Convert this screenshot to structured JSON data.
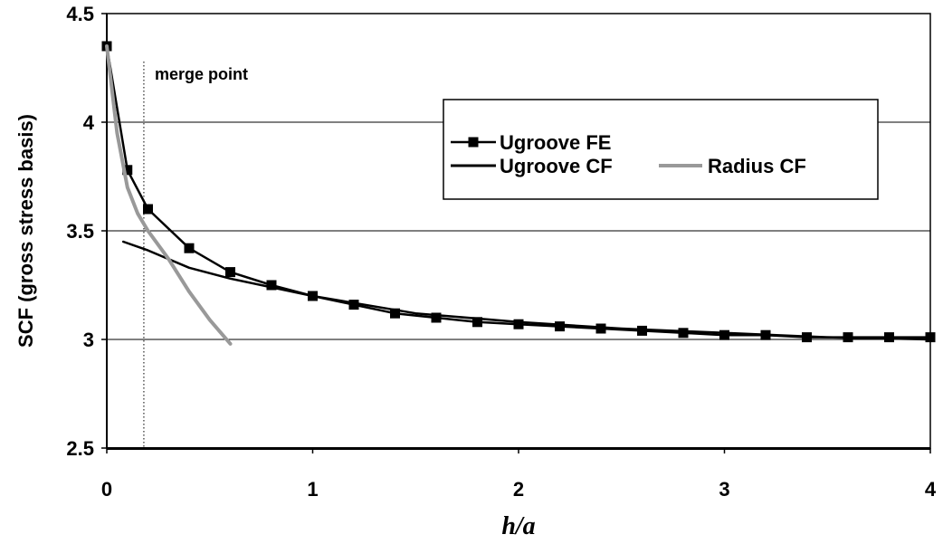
{
  "chart_data": {
    "type": "line",
    "xlabel": "h/a",
    "ylabel": "SCF (gross stress basis)",
    "xlim": [
      0,
      4
    ],
    "ylim": [
      2.5,
      4.5
    ],
    "x_ticks": [
      "0",
      "1",
      "2",
      "3",
      "4"
    ],
    "y_ticks": [
      "2.5",
      "3",
      "3.5",
      "4",
      "4.5"
    ],
    "grid": "horizontal",
    "legend_position": "upper-right",
    "annotation": {
      "text": "merge point",
      "x": 0.18
    },
    "series": [
      {
        "name": "Ugroove FE",
        "color": "#000000",
        "marker": "square",
        "x": [
          0,
          0.1,
          0.2,
          0.4,
          0.6,
          0.8,
          1.0,
          1.2,
          1.4,
          1.6,
          1.8,
          2.0,
          2.2,
          2.4,
          2.6,
          2.8,
          3.0,
          3.2,
          3.4,
          3.6,
          3.8,
          4.0
        ],
        "y": [
          4.35,
          3.78,
          3.6,
          3.42,
          3.31,
          3.25,
          3.2,
          3.16,
          3.12,
          3.1,
          3.08,
          3.07,
          3.06,
          3.05,
          3.04,
          3.03,
          3.02,
          3.02,
          3.01,
          3.01,
          3.01,
          3.01
        ]
      },
      {
        "name": "Ugroove CF",
        "color": "#000000",
        "marker": "none",
        "x": [
          0.08,
          0.2,
          0.4,
          0.6,
          0.8,
          1.0,
          1.5,
          2.0,
          2.5,
          3.0,
          3.5,
          4.0
        ],
        "y": [
          3.45,
          3.41,
          3.33,
          3.28,
          3.24,
          3.2,
          3.12,
          3.08,
          3.05,
          3.03,
          3.01,
          3.0
        ]
      },
      {
        "name": "Radius CF",
        "color": "#999999",
        "marker": "none",
        "x": [
          0,
          0.05,
          0.1,
          0.15,
          0.2,
          0.3,
          0.4,
          0.5,
          0.6
        ],
        "y": [
          4.35,
          3.95,
          3.7,
          3.58,
          3.5,
          3.37,
          3.22,
          3.09,
          2.98
        ]
      }
    ]
  }
}
